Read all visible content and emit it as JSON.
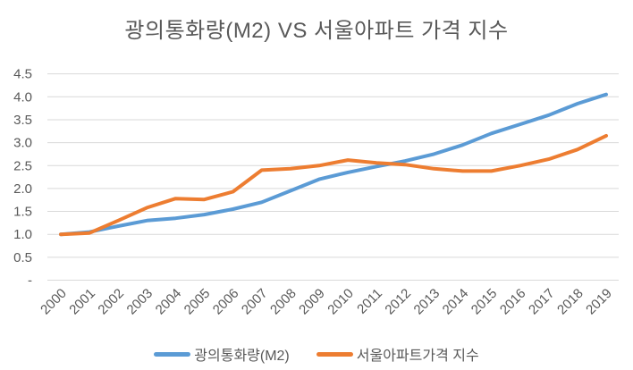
{
  "title": "광의통화량(M2) VS 서울아파트 가격 지수",
  "colors": {
    "background": "#FFFFFF",
    "gridline": "#D9D9D9",
    "tick_label": "#595959",
    "title_text": "#595959",
    "series_m2": "#5B9BD5",
    "series_seoul": "#ED7D31"
  },
  "chart_data": {
    "type": "line",
    "title": "광의통화량(M2) VS 서울아파트 가격 지수",
    "categories": [
      "2000",
      "2001",
      "2002",
      "2003",
      "2004",
      "2005",
      "2006",
      "2007",
      "2008",
      "2009",
      "2010",
      "2011",
      "2012",
      "2013",
      "2014",
      "2015",
      "2016",
      "2017",
      "2018",
      "2019"
    ],
    "series": [
      {
        "name": "광의통화량(M2)",
        "color": "#5B9BD5",
        "values": [
          1.0,
          1.05,
          1.18,
          1.3,
          1.35,
          1.43,
          1.55,
          1.7,
          1.95,
          2.2,
          2.35,
          2.48,
          2.6,
          2.75,
          2.95,
          3.2,
          3.4,
          3.6,
          3.85,
          4.05
        ]
      },
      {
        "name": "서울아파트가격 지수",
        "color": "#ED7D31",
        "values": [
          1.0,
          1.03,
          1.3,
          1.58,
          1.78,
          1.76,
          1.93,
          2.4,
          2.43,
          2.5,
          2.62,
          2.56,
          2.52,
          2.43,
          2.38,
          2.38,
          2.5,
          2.64,
          2.85,
          3.15
        ]
      }
    ],
    "ylim": [
      0,
      4.5
    ],
    "ytick_step": 0.5,
    "ytick_labels": [
      "-",
      "0.5",
      "1.0",
      "1.5",
      "2.0",
      "2.5",
      "3.0",
      "3.5",
      "4.0",
      "4.5"
    ],
    "grid": true,
    "x_label_rotation_deg": 45,
    "legend_position": "bottom"
  }
}
